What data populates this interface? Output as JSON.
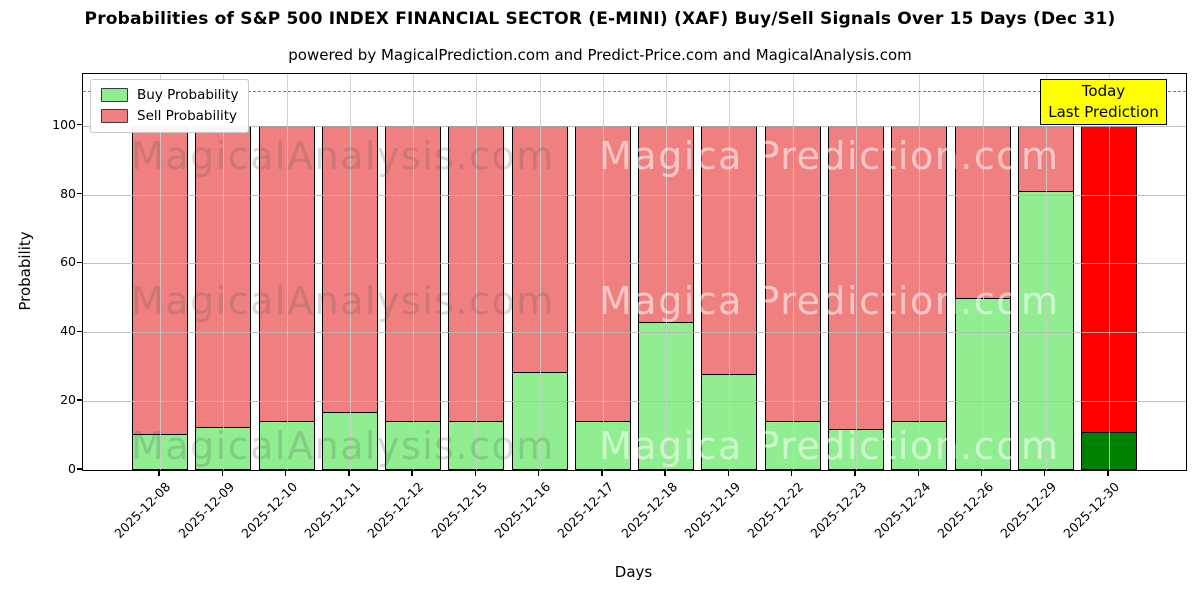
{
  "title": "Probabilities of S&P 500 INDEX FINANCIAL SECTOR (E-MINI) (XAF) Buy/Sell Signals Over 15 Days (Dec 31)",
  "subtitle": "powered by MagicalPrediction.com and Predict-Price.com and MagicalAnalysis.com",
  "legend": {
    "buy_label": "Buy Probability",
    "sell_label": "Sell Probability"
  },
  "annotation_box": {
    "line1": "Today",
    "line2": "Last Prediction",
    "bg": "#ffff00"
  },
  "watermarks": {
    "left": "MagicalAnalysis.com",
    "right": "Magica Prediction.com"
  },
  "colors": {
    "buy": "#90ee90",
    "sell": "#f08080",
    "today_buy": "#008000",
    "today_sell": "#ff0000",
    "bar_edge": "#000000",
    "grid": "#c8c8c8",
    "dashed_line": "#7d7d7d",
    "annotation_bg": "#ffff00"
  },
  "chart_data": {
    "type": "bar",
    "stacked": true,
    "title": "Probabilities of S&P 500 INDEX FINANCIAL SECTOR (E-MINI) (XAF) Buy/Sell Signals Over 15 Days (Dec 31)",
    "xlabel": "Days",
    "ylabel": "Probability",
    "categories": [
      "2025-12-08",
      "2025-12-09",
      "2025-12-10",
      "2025-12-11",
      "2025-12-12",
      "2025-12-15",
      "2025-12-16",
      "2025-12-17",
      "2025-12-18",
      "2025-12-19",
      "2025-12-22",
      "2025-12-23",
      "2025-12-24",
      "2025-12-26",
      "2025-12-29",
      "2025-12-30"
    ],
    "series": [
      {
        "name": "Buy Probability",
        "values": [
          10.5,
          12.5,
          14.3,
          16.7,
          14.3,
          14.3,
          28.6,
          14.3,
          42.9,
          28.0,
          14.3,
          12.0,
          14.3,
          50.0,
          81.0,
          11.0
        ]
      },
      {
        "name": "Sell Probability",
        "values": [
          89.5,
          87.5,
          85.7,
          83.3,
          85.7,
          85.7,
          71.4,
          85.7,
          57.1,
          72.0,
          85.7,
          88.0,
          85.7,
          50.0,
          19.0,
          89.0
        ]
      }
    ],
    "today_index": 15,
    "ylim": [
      0,
      115
    ],
    "yticks": [
      0,
      20,
      40,
      60,
      80,
      100
    ],
    "dashed_line_y": 110,
    "grid": true,
    "legend_position": "upper left"
  }
}
